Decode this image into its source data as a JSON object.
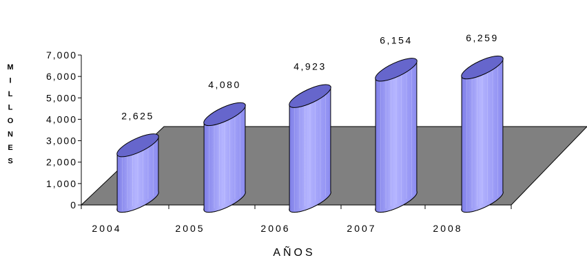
{
  "chart_data": {
    "type": "bar",
    "categories": [
      "2004",
      "2005",
      "2006",
      "2007",
      "2008"
    ],
    "values": [
      2625,
      4080,
      4923,
      6154,
      6259
    ],
    "value_labels": [
      "2,625",
      "4,080",
      "4,923",
      "6,154",
      "6,259"
    ],
    "xlabel": "AÑOS",
    "ylabel": "MILLONES",
    "ylim": [
      0,
      7000
    ],
    "yticks": [
      0,
      1000,
      2000,
      3000,
      4000,
      5000,
      6000,
      7000
    ],
    "ytick_labels": [
      "0",
      "1,000",
      "2,000",
      "3,000",
      "4,000",
      "5,000",
      "6,000",
      "7,000"
    ],
    "grid": false,
    "legend": "none",
    "bar_shape": "3d-cylinder",
    "colors": {
      "bar_fill": "#9999ff",
      "bar_top": "#6666cc",
      "floor": "#808080",
      "axis": "#000000"
    }
  }
}
